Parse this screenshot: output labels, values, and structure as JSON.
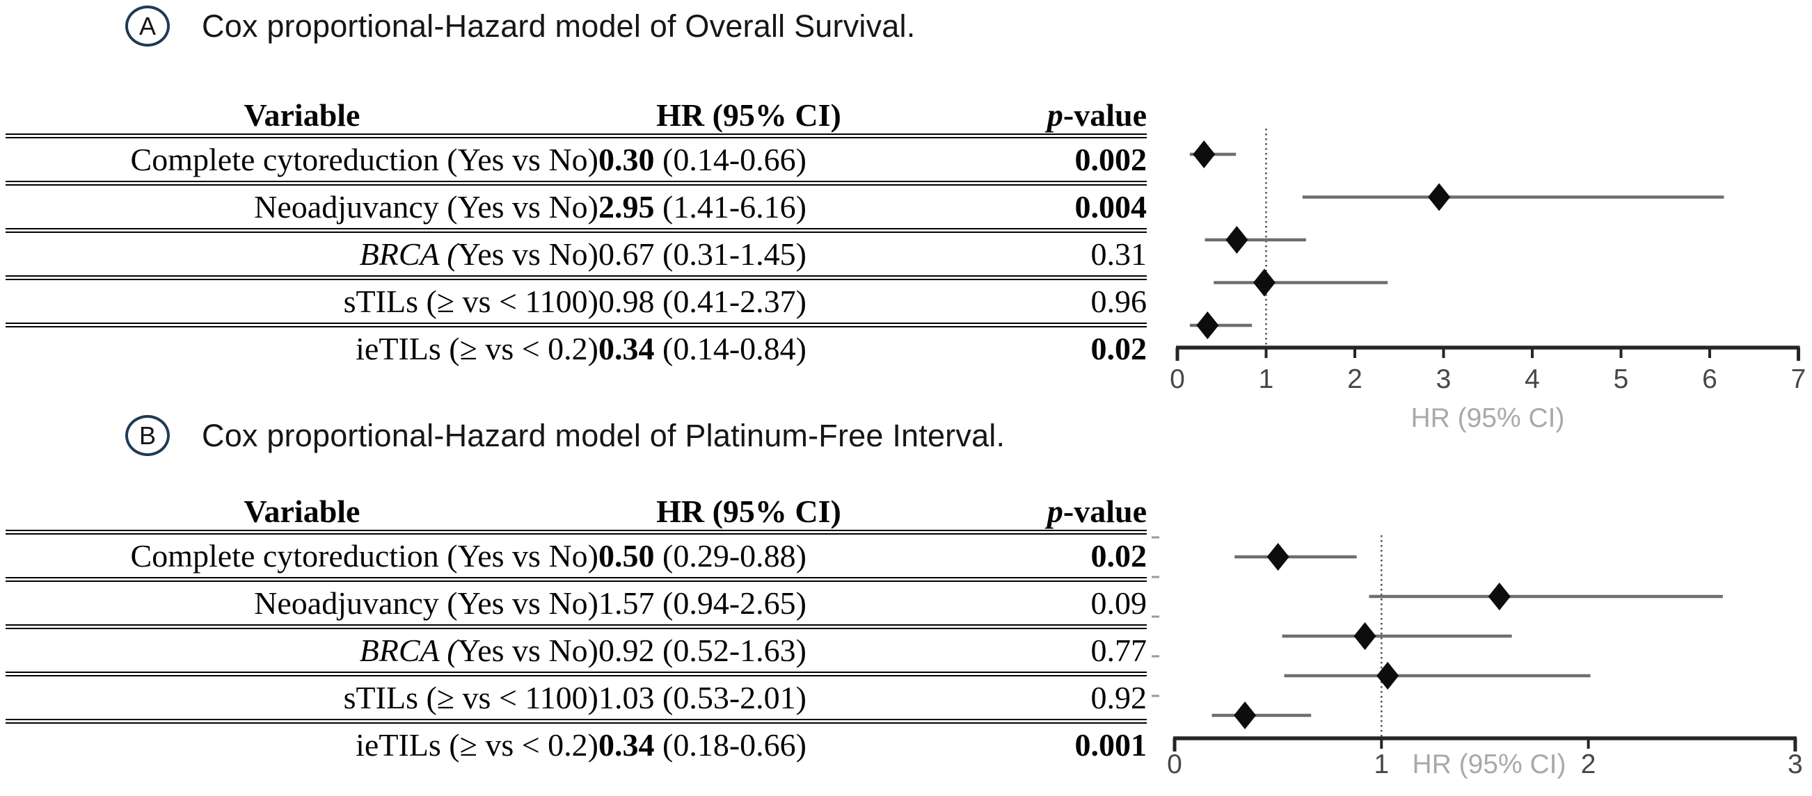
{
  "panels": [
    {
      "label": "A",
      "title": "Cox proportional-Hazard model of Overall Survival.",
      "table": {
        "headers": [
          "Variable",
          "HR (95% CI)"
        ],
        "p_italic": "p",
        "p_rest": "-value",
        "rows": [
          {
            "var_italic": "",
            "var_text": "Complete cytoreduction (Yes vs No)",
            "hr": "0.30",
            "ci": "(0.14-0.66)",
            "p": "0.002",
            "sig": true
          },
          {
            "var_italic": "",
            "var_text": "Neoadjuvancy (Yes vs No)",
            "hr": "2.95",
            "ci": "(1.41-6.16)",
            "p": "0.004",
            "sig": true
          },
          {
            "var_italic": "BRCA (",
            "var_text": "Yes vs No)",
            "hr": "0.67",
            "ci": "(0.31-1.45)",
            "p": "0.31",
            "sig": false
          },
          {
            "var_italic": "",
            "var_text": "sTILs (≥ vs < 1100)",
            "hr": "0.98",
            "ci": "(0.41-2.37)",
            "p": "0.96",
            "sig": false
          },
          {
            "var_italic": "",
            "var_text": "ieTILs (≥ vs < 0.2)",
            "hr": "0.34",
            "ci": "(0.14-0.84)",
            "p": "0.02",
            "sig": true
          }
        ]
      }
    },
    {
      "label": "B",
      "title": "Cox proportional-Hazard model of Platinum-Free Interval.",
      "table": {
        "headers": [
          "Variable",
          "HR (95% CI)"
        ],
        "p_italic": "p",
        "p_rest": "-value",
        "rows": [
          {
            "var_italic": "",
            "var_text": "Complete cytoreduction (Yes vs No)",
            "hr": "0.50",
            "ci": "(0.29-0.88)",
            "p": "0.02",
            "sig": true
          },
          {
            "var_italic": "",
            "var_text": "Neoadjuvancy (Yes vs No)",
            "hr": "1.57",
            "ci": "(0.94-2.65)",
            "p": "0.09",
            "sig": false
          },
          {
            "var_italic": "BRCA (",
            "var_text": "Yes vs No)",
            "hr": "0.92",
            "ci": "(0.52-1.63)",
            "p": "0.77",
            "sig": false
          },
          {
            "var_italic": "",
            "var_text": "sTILs (≥ vs < 1100)",
            "hr": "1.03",
            "ci": "(0.53-2.01)",
            "p": "0.92",
            "sig": false
          },
          {
            "var_italic": "",
            "var_text": "ieTILs (≥ vs < 0.2)",
            "hr": "0.34",
            "ci": "(0.18-0.66)",
            "p": "0.001",
            "sig": true
          }
        ]
      }
    }
  ],
  "chart_data": [
    {
      "type": "scatter",
      "subtype": "forest-plot",
      "panel": "A",
      "title": "Cox proportional-Hazard model of Overall Survival.",
      "categories": [
        "Complete cytoreduction (Yes vs No)",
        "Neoadjuvancy (Yes vs No)",
        "BRCA (Yes vs No)",
        "sTILs (≥ vs < 1100)",
        "ieTILs (≥ vs < 0.2)"
      ],
      "hr": [
        0.3,
        2.95,
        0.67,
        0.98,
        0.34
      ],
      "ci_low": [
        0.14,
        1.41,
        0.31,
        0.41,
        0.14
      ],
      "ci_high": [
        0.66,
        6.16,
        1.45,
        2.37,
        0.84
      ],
      "p_values": [
        "0.002",
        "0.004",
        "0.31",
        "0.96",
        "0.02"
      ],
      "xlabel": "HR (95% CI)",
      "xlim": [
        0,
        7
      ],
      "xticks": [
        0,
        1,
        2,
        3,
        4,
        5,
        6,
        7
      ],
      "refline": 1,
      "grid": false,
      "marker": "diamond",
      "marker_color": "#0d0d0d",
      "ci_color": "#6e6e6e",
      "xlabel_color": "#a9a9a9"
    },
    {
      "type": "scatter",
      "subtype": "forest-plot",
      "panel": "B",
      "title": "Cox proportional-Hazard model of Platinum-Free Interval.",
      "categories": [
        "Complete cytoreduction (Yes vs No)",
        "Neoadjuvancy (Yes vs No)",
        "BRCA (Yes vs No)",
        "sTILs (≥ vs < 1100)",
        "ieTILs (≥ vs < 0.2)"
      ],
      "hr": [
        0.5,
        1.57,
        0.92,
        1.03,
        0.34
      ],
      "ci_low": [
        0.29,
        0.94,
        0.52,
        0.53,
        0.18
      ],
      "ci_high": [
        0.88,
        2.65,
        1.63,
        2.01,
        0.66
      ],
      "p_values": [
        "0.02",
        "0.09",
        "0.77",
        "0.92",
        "0.001"
      ],
      "xlabel": "HR (95% CI)",
      "xlim": [
        0,
        3
      ],
      "xticks": [
        0,
        1,
        2,
        3
      ],
      "refline": 1,
      "grid": false,
      "marker": "diamond",
      "marker_color": "#0d0d0d",
      "ci_color": "#6e6e6e",
      "xlabel_color": "#a9a9a9"
    }
  ]
}
